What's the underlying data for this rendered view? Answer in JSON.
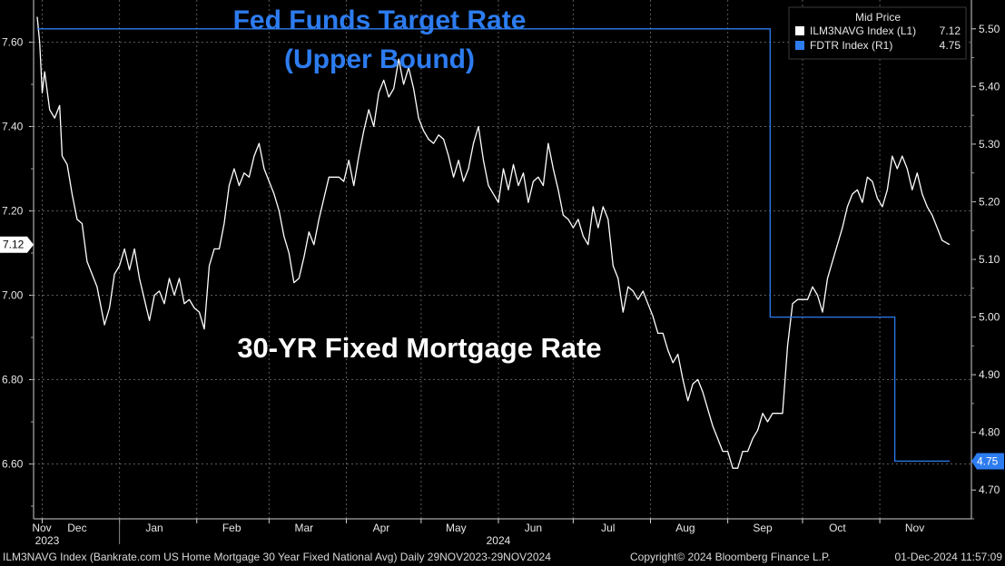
{
  "chart_data": {
    "type": "line",
    "annotations": {
      "fed_title_line1": "Fed Funds Target Rate",
      "fed_title_line2": "(Upper Bound)",
      "mortgage_title": "30-YR Fixed Mortgage Rate"
    },
    "legend": {
      "header": "Mid Price",
      "placement": "top-right",
      "entries": [
        {
          "label": "ILM3NAVG Index  (L1)",
          "value": "7.12",
          "color": "#ffffff"
        },
        {
          "label": "FDTR Index  (R1)",
          "value": "4.75",
          "color": "#2d7cf0"
        }
      ]
    },
    "x_axis": {
      "range": [
        "2023-11-29",
        "2024-11-29"
      ],
      "months": [
        "Nov",
        "Dec",
        "Jan",
        "Feb",
        "Mar",
        "Apr",
        "May",
        "Jun",
        "Jul",
        "Aug",
        "Sep",
        "Oct",
        "Nov"
      ],
      "years": [
        "2023",
        "2024"
      ]
    },
    "y_left": {
      "ylim": [
        6.47,
        7.7
      ],
      "ticks": [
        "7.60",
        "7.40",
        "7.20",
        "7.00",
        "6.80",
        "6.60"
      ],
      "last_value_label": "7.12"
    },
    "y_right": {
      "ylim": [
        4.65,
        5.55
      ],
      "ticks": [
        "5.50",
        "5.40",
        "5.30",
        "5.20",
        "5.10",
        "5.00",
        "4.90",
        "4.80",
        "4.70"
      ],
      "last_value_label": "4.75"
    },
    "grid": true,
    "series": [
      {
        "name": "ILM3NAVG Index",
        "axis": "left",
        "color": "#ffffff",
        "points": [
          [
            "2023-11-29",
            7.66
          ],
          [
            "2023-11-30",
            7.6
          ],
          [
            "2023-12-01",
            7.48
          ],
          [
            "2023-12-02",
            7.53
          ],
          [
            "2023-12-04",
            7.44
          ],
          [
            "2023-12-06",
            7.42
          ],
          [
            "2023-12-08",
            7.45
          ],
          [
            "2023-12-09",
            7.33
          ],
          [
            "2023-12-11",
            7.31
          ],
          [
            "2023-12-13",
            7.24
          ],
          [
            "2023-12-15",
            7.18
          ],
          [
            "2023-12-17",
            7.17
          ],
          [
            "2023-12-19",
            7.08
          ],
          [
            "2023-12-21",
            7.05
          ],
          [
            "2023-12-23",
            7.02
          ],
          [
            "2023-12-26",
            6.93
          ],
          [
            "2023-12-28",
            6.97
          ],
          [
            "2023-12-30",
            7.05
          ],
          [
            "2024-01-01",
            7.07
          ],
          [
            "2024-01-03",
            7.11
          ],
          [
            "2024-01-05",
            7.06
          ],
          [
            "2024-01-07",
            7.11
          ],
          [
            "2024-01-09",
            7.04
          ],
          [
            "2024-01-11",
            6.99
          ],
          [
            "2024-01-13",
            6.94
          ],
          [
            "2024-01-15",
            7.0
          ],
          [
            "2024-01-17",
            7.01
          ],
          [
            "2024-01-19",
            6.98
          ],
          [
            "2024-01-21",
            7.04
          ],
          [
            "2024-01-23",
            7.0
          ],
          [
            "2024-01-25",
            7.04
          ],
          [
            "2024-01-27",
            6.98
          ],
          [
            "2024-01-29",
            6.99
          ],
          [
            "2024-01-31",
            6.97
          ],
          [
            "2024-02-02",
            6.96
          ],
          [
            "2024-02-04",
            6.92
          ],
          [
            "2024-02-06",
            7.07
          ],
          [
            "2024-02-08",
            7.11
          ],
          [
            "2024-02-10",
            7.11
          ],
          [
            "2024-02-12",
            7.17
          ],
          [
            "2024-02-14",
            7.26
          ],
          [
            "2024-02-16",
            7.3
          ],
          [
            "2024-02-18",
            7.26
          ],
          [
            "2024-02-20",
            7.29
          ],
          [
            "2024-02-22",
            7.28
          ],
          [
            "2024-02-24",
            7.33
          ],
          [
            "2024-02-26",
            7.36
          ],
          [
            "2024-02-28",
            7.3
          ],
          [
            "2024-03-01",
            7.27
          ],
          [
            "2024-03-03",
            7.24
          ],
          [
            "2024-03-05",
            7.2
          ],
          [
            "2024-03-07",
            7.14
          ],
          [
            "2024-03-09",
            7.1
          ],
          [
            "2024-03-11",
            7.03
          ],
          [
            "2024-03-13",
            7.04
          ],
          [
            "2024-03-15",
            7.09
          ],
          [
            "2024-03-17",
            7.15
          ],
          [
            "2024-03-19",
            7.12
          ],
          [
            "2024-03-21",
            7.18
          ],
          [
            "2024-03-23",
            7.23
          ],
          [
            "2024-03-25",
            7.28
          ],
          [
            "2024-03-27",
            7.28
          ],
          [
            "2024-03-29",
            7.28
          ],
          [
            "2024-03-31",
            7.27
          ],
          [
            "2024-04-02",
            7.32
          ],
          [
            "2024-04-04",
            7.26
          ],
          [
            "2024-04-06",
            7.33
          ],
          [
            "2024-04-08",
            7.39
          ],
          [
            "2024-04-10",
            7.44
          ],
          [
            "2024-04-12",
            7.4
          ],
          [
            "2024-04-14",
            7.48
          ],
          [
            "2024-04-16",
            7.51
          ],
          [
            "2024-04-18",
            7.47
          ],
          [
            "2024-04-20",
            7.49
          ],
          [
            "2024-04-22",
            7.56
          ],
          [
            "2024-04-24",
            7.5
          ],
          [
            "2024-04-26",
            7.54
          ],
          [
            "2024-04-28",
            7.49
          ],
          [
            "2024-04-30",
            7.42
          ],
          [
            "2024-05-02",
            7.39
          ],
          [
            "2024-05-04",
            7.37
          ],
          [
            "2024-05-06",
            7.36
          ],
          [
            "2024-05-08",
            7.38
          ],
          [
            "2024-05-10",
            7.37
          ],
          [
            "2024-05-12",
            7.33
          ],
          [
            "2024-05-14",
            7.28
          ],
          [
            "2024-05-16",
            7.32
          ],
          [
            "2024-05-18",
            7.27
          ],
          [
            "2024-05-20",
            7.3
          ],
          [
            "2024-05-22",
            7.36
          ],
          [
            "2024-05-24",
            7.4
          ],
          [
            "2024-05-26",
            7.32
          ],
          [
            "2024-05-28",
            7.26
          ],
          [
            "2024-05-30",
            7.24
          ],
          [
            "2024-06-01",
            7.22
          ],
          [
            "2024-06-03",
            7.3
          ],
          [
            "2024-06-05",
            7.25
          ],
          [
            "2024-06-07",
            7.31
          ],
          [
            "2024-06-09",
            7.26
          ],
          [
            "2024-06-11",
            7.29
          ],
          [
            "2024-06-13",
            7.22
          ],
          [
            "2024-06-15",
            7.27
          ],
          [
            "2024-06-17",
            7.28
          ],
          [
            "2024-06-19",
            7.26
          ],
          [
            "2024-06-21",
            7.36
          ],
          [
            "2024-06-23",
            7.3
          ],
          [
            "2024-06-25",
            7.25
          ],
          [
            "2024-06-27",
            7.19
          ],
          [
            "2024-06-29",
            7.18
          ],
          [
            "2024-07-01",
            7.16
          ],
          [
            "2024-07-03",
            7.18
          ],
          [
            "2024-07-05",
            7.14
          ],
          [
            "2024-07-07",
            7.12
          ],
          [
            "2024-07-09",
            7.21
          ],
          [
            "2024-07-11",
            7.16
          ],
          [
            "2024-07-13",
            7.21
          ],
          [
            "2024-07-15",
            7.18
          ],
          [
            "2024-07-17",
            7.07
          ],
          [
            "2024-07-19",
            7.04
          ],
          [
            "2024-07-21",
            6.96
          ],
          [
            "2024-07-23",
            7.02
          ],
          [
            "2024-07-25",
            7.01
          ],
          [
            "2024-07-27",
            6.99
          ],
          [
            "2024-07-29",
            7.01
          ],
          [
            "2024-07-31",
            6.98
          ],
          [
            "2024-08-02",
            6.95
          ],
          [
            "2024-08-04",
            6.91
          ],
          [
            "2024-08-06",
            6.91
          ],
          [
            "2024-08-08",
            6.87
          ],
          [
            "2024-08-10",
            6.84
          ],
          [
            "2024-08-12",
            6.86
          ],
          [
            "2024-08-14",
            6.8
          ],
          [
            "2024-08-16",
            6.75
          ],
          [
            "2024-08-18",
            6.79
          ],
          [
            "2024-08-20",
            6.8
          ],
          [
            "2024-08-22",
            6.77
          ],
          [
            "2024-08-24",
            6.73
          ],
          [
            "2024-08-26",
            6.69
          ],
          [
            "2024-08-28",
            6.66
          ],
          [
            "2024-08-30",
            6.63
          ],
          [
            "2024-09-01",
            6.63
          ],
          [
            "2024-09-03",
            6.59
          ],
          [
            "2024-09-05",
            6.59
          ],
          [
            "2024-09-07",
            6.63
          ],
          [
            "2024-09-09",
            6.63
          ],
          [
            "2024-09-11",
            6.66
          ],
          [
            "2024-09-13",
            6.68
          ],
          [
            "2024-09-15",
            6.72
          ],
          [
            "2024-09-17",
            6.7
          ],
          [
            "2024-09-19",
            6.72
          ],
          [
            "2024-09-21",
            6.72
          ],
          [
            "2024-09-23",
            6.72
          ],
          [
            "2024-09-25",
            6.88
          ],
          [
            "2024-09-27",
            6.98
          ],
          [
            "2024-09-29",
            6.99
          ],
          [
            "2024-10-01",
            6.99
          ],
          [
            "2024-10-03",
            6.99
          ],
          [
            "2024-10-05",
            7.02
          ],
          [
            "2024-10-07",
            7.0
          ],
          [
            "2024-10-09",
            6.96
          ],
          [
            "2024-10-11",
            7.04
          ],
          [
            "2024-10-13",
            7.08
          ],
          [
            "2024-10-15",
            7.12
          ],
          [
            "2024-10-17",
            7.16
          ],
          [
            "2024-10-19",
            7.21
          ],
          [
            "2024-10-21",
            7.24
          ],
          [
            "2024-10-23",
            7.25
          ],
          [
            "2024-10-25",
            7.22
          ],
          [
            "2024-10-27",
            7.28
          ],
          [
            "2024-10-29",
            7.27
          ],
          [
            "2024-10-31",
            7.23
          ],
          [
            "2024-11-02",
            7.21
          ],
          [
            "2024-11-04",
            7.25
          ],
          [
            "2024-11-06",
            7.33
          ],
          [
            "2024-11-08",
            7.3
          ],
          [
            "2024-11-10",
            7.33
          ],
          [
            "2024-11-12",
            7.3
          ],
          [
            "2024-11-14",
            7.25
          ],
          [
            "2024-11-16",
            7.29
          ],
          [
            "2024-11-18",
            7.24
          ],
          [
            "2024-11-20",
            7.21
          ],
          [
            "2024-11-22",
            7.19
          ],
          [
            "2024-11-24",
            7.16
          ],
          [
            "2024-11-26",
            7.13
          ],
          [
            "2024-11-29",
            7.12
          ]
        ]
      },
      {
        "name": "FDTR Index",
        "axis": "right",
        "color": "#2d7cf0",
        "points": [
          [
            "2023-11-29",
            5.5
          ],
          [
            "2024-09-18",
            5.5
          ],
          [
            "2024-09-18",
            5.0
          ],
          [
            "2024-11-07",
            5.0
          ],
          [
            "2024-11-07",
            4.75
          ],
          [
            "2024-11-29",
            4.75
          ]
        ]
      }
    ]
  },
  "footer": {
    "left": "ILM3NAVG Index (Bankrate.com US Home Mortgage 30 Year Fixed National Avg)  Daily 29NOV2023-29NOV2024",
    "center": "Copyright© 2024 Bloomberg Finance L.P.",
    "right": "01-Dec-2024 11:57:09"
  }
}
